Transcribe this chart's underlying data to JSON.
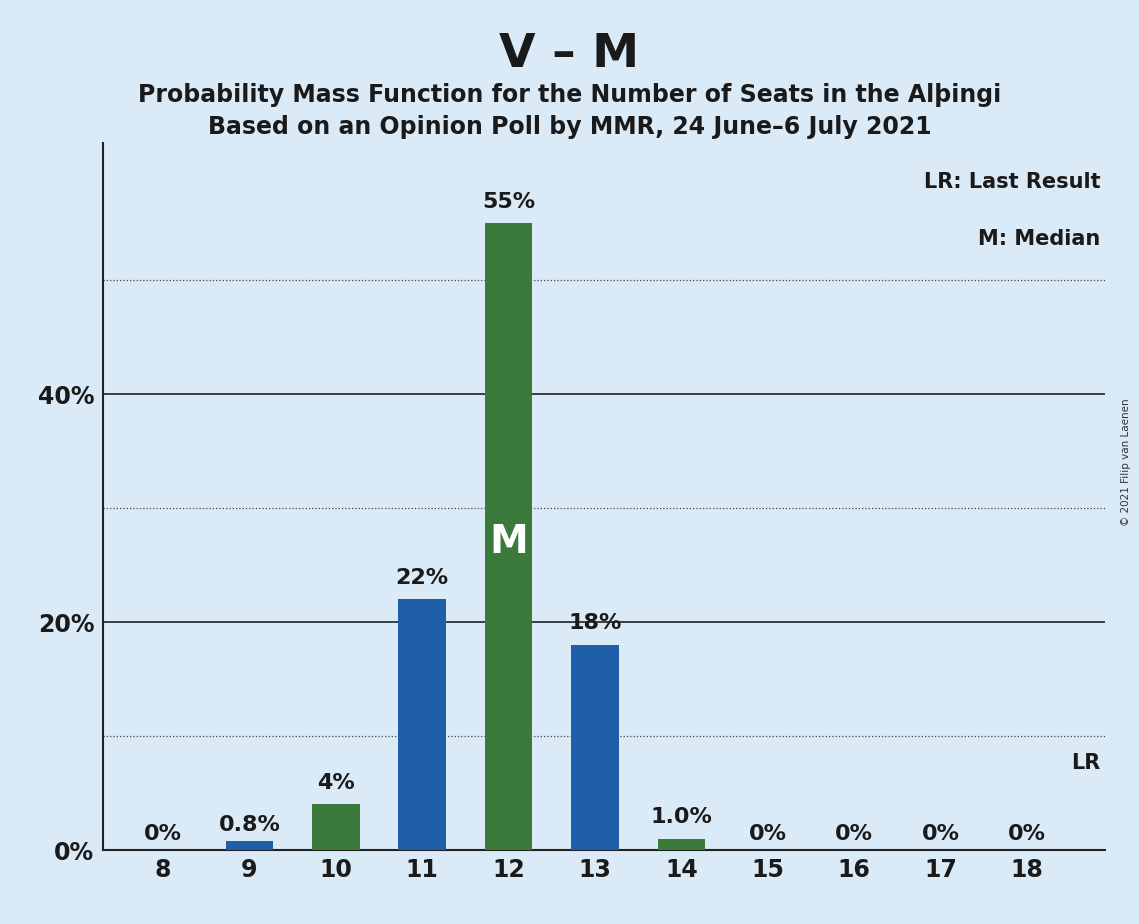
{
  "title": "V – M",
  "subtitle1": "Probability Mass Function for the Number of Seats in the Alþingi",
  "subtitle2": "Based on an Opinion Poll by MMR, 24 June–6 July 2021",
  "copyright": "© 2021 Filip van Laenen",
  "seats": [
    8,
    9,
    10,
    11,
    12,
    13,
    14,
    15,
    16,
    17,
    18
  ],
  "values": [
    0.0,
    0.8,
    4.0,
    22.0,
    55.0,
    18.0,
    1.0,
    0.0,
    0.0,
    0.0,
    0.0
  ],
  "colors": [
    "#1f5faa",
    "#1f5faa",
    "#3a7a3a",
    "#1f5faa",
    "#3a7a3a",
    "#1f5faa",
    "#3a7a3a",
    "#1f5faa",
    "#1f5faa",
    "#1f5faa",
    "#1f5faa"
  ],
  "labels": [
    "0%",
    "0.8%",
    "4%",
    "22%",
    "55%",
    "18%",
    "1.0%",
    "0%",
    "0%",
    "0%",
    "0%"
  ],
  "median_seat": 12,
  "lr_seat": 18,
  "background_color": "#daeaf7",
  "bar_width": 0.55,
  "ylim_max": 60,
  "legend_lr": "LR: Last Result",
  "legend_m": "M: Median",
  "title_fontsize": 34,
  "subtitle_fontsize": 17,
  "label_fontsize": 16,
  "axis_fontsize": 17,
  "solid_gridlines": [
    20,
    40
  ],
  "dotted_gridlines": [
    10,
    30,
    50
  ],
  "ytick_positions": [
    0,
    20,
    40
  ],
  "ytick_labels": [
    "0%",
    "20%",
    "40%"
  ]
}
